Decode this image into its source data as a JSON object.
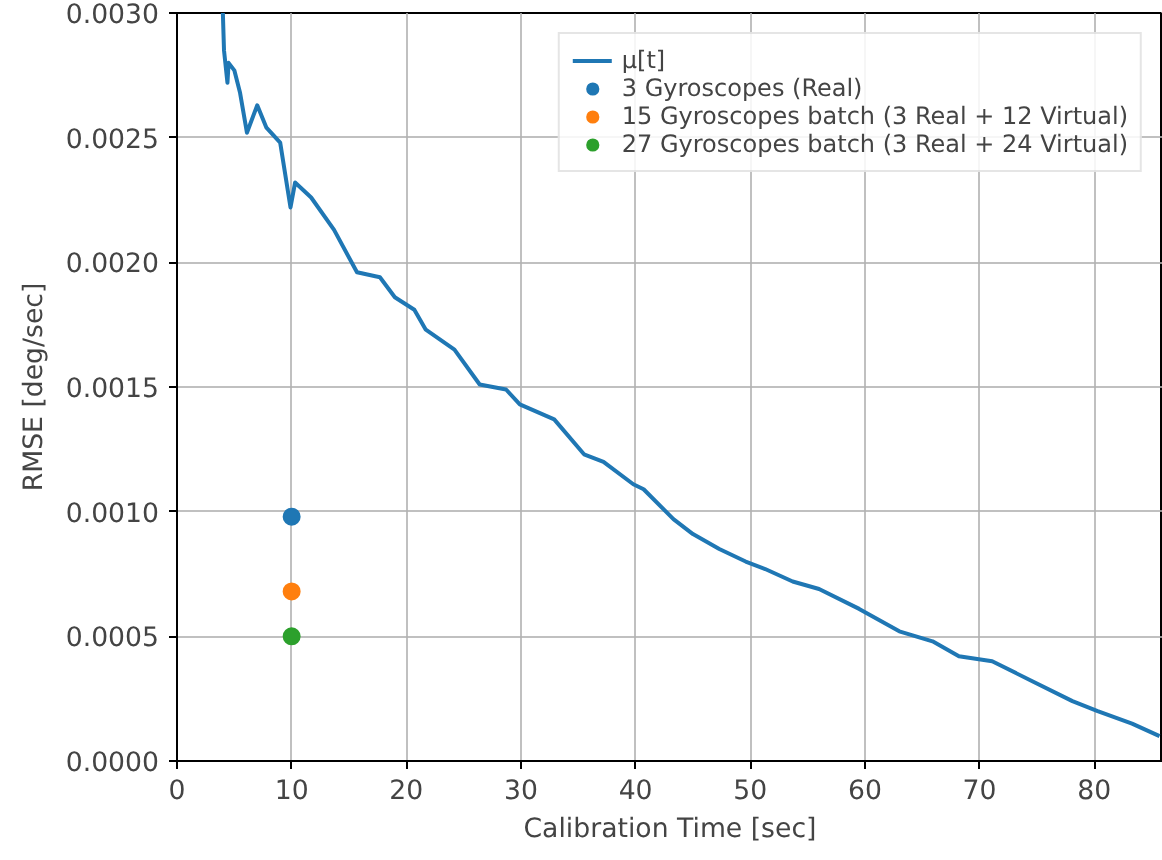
{
  "chart_data": {
    "type": "line",
    "xlabel": "Calibration Time [sec]",
    "ylabel": "RMSE [deg/sec]",
    "xlim": [
      0,
      86
    ],
    "ylim": [
      0,
      0.003
    ],
    "xticks": [
      0,
      10,
      20,
      30,
      40,
      50,
      60,
      70,
      80
    ],
    "yticks": [
      {
        "value": 0,
        "label": "0.0000"
      },
      {
        "value": 0.0005,
        "label": "0.0005"
      },
      {
        "value": 0.001,
        "label": "0.0010"
      },
      {
        "value": 0.0015,
        "label": "0.0015"
      },
      {
        "value": 0.002,
        "label": "0.0020"
      },
      {
        "value": 0.0025,
        "label": "0.0025"
      },
      {
        "value": 0.003,
        "label": "0.0030"
      }
    ],
    "grid": true,
    "legend": "top right",
    "series": [
      {
        "name": "μ[t]",
        "color": "#1f77b4",
        "x": [
          4.0,
          4.1,
          4.4,
          4.5,
          5.0,
          5.5,
          6.1,
          7.0,
          7.8,
          9.0,
          9.9,
          10.3,
          11.7,
          13.7,
          15.7,
          17.7,
          19.0,
          20.7,
          21.7,
          24.2,
          26.4,
          28.7,
          29.9,
          32.9,
          35.5,
          37.2,
          39.8,
          40.7,
          43.3,
          45.0,
          47.3,
          49.6,
          51.3,
          53.7,
          56.0,
          59.5,
          63.0,
          65.9,
          68.2,
          71.1,
          74.6,
          78.1,
          80.3,
          83.3,
          85.7
        ],
        "values": [
          0.003,
          0.00285,
          0.00272,
          0.0028,
          0.00277,
          0.00268,
          0.00252,
          0.00263,
          0.00254,
          0.00248,
          0.00222,
          0.00232,
          0.00226,
          0.00213,
          0.00196,
          0.00194,
          0.00186,
          0.00181,
          0.00173,
          0.00165,
          0.00151,
          0.00149,
          0.00143,
          0.00137,
          0.00123,
          0.0012,
          0.00111,
          0.00109,
          0.00097,
          0.00091,
          0.00085,
          0.0008,
          0.00077,
          0.00072,
          0.00069,
          0.00061,
          0.00052,
          0.00048,
          0.00042,
          0.0004,
          0.00032,
          0.00024,
          0.0002,
          0.00015,
          0.0001
        ]
      },
      {
        "name": "3 Gyroscopes (Real)",
        "type": "scatter",
        "color": "#1f77b4",
        "x": [
          10
        ],
        "values": [
          0.00098
        ]
      },
      {
        "name": "15 Gyroscopes batch (3 Real + 12 Virtual)",
        "type": "scatter",
        "color": "#ff7f0e",
        "x": [
          10
        ],
        "values": [
          0.00068
        ]
      },
      {
        "name": "27 Gyroscopes batch (3 Real + 24 Virtual)",
        "type": "scatter",
        "color": "#2ca02c",
        "x": [
          10
        ],
        "values": [
          0.0005
        ]
      }
    ]
  }
}
